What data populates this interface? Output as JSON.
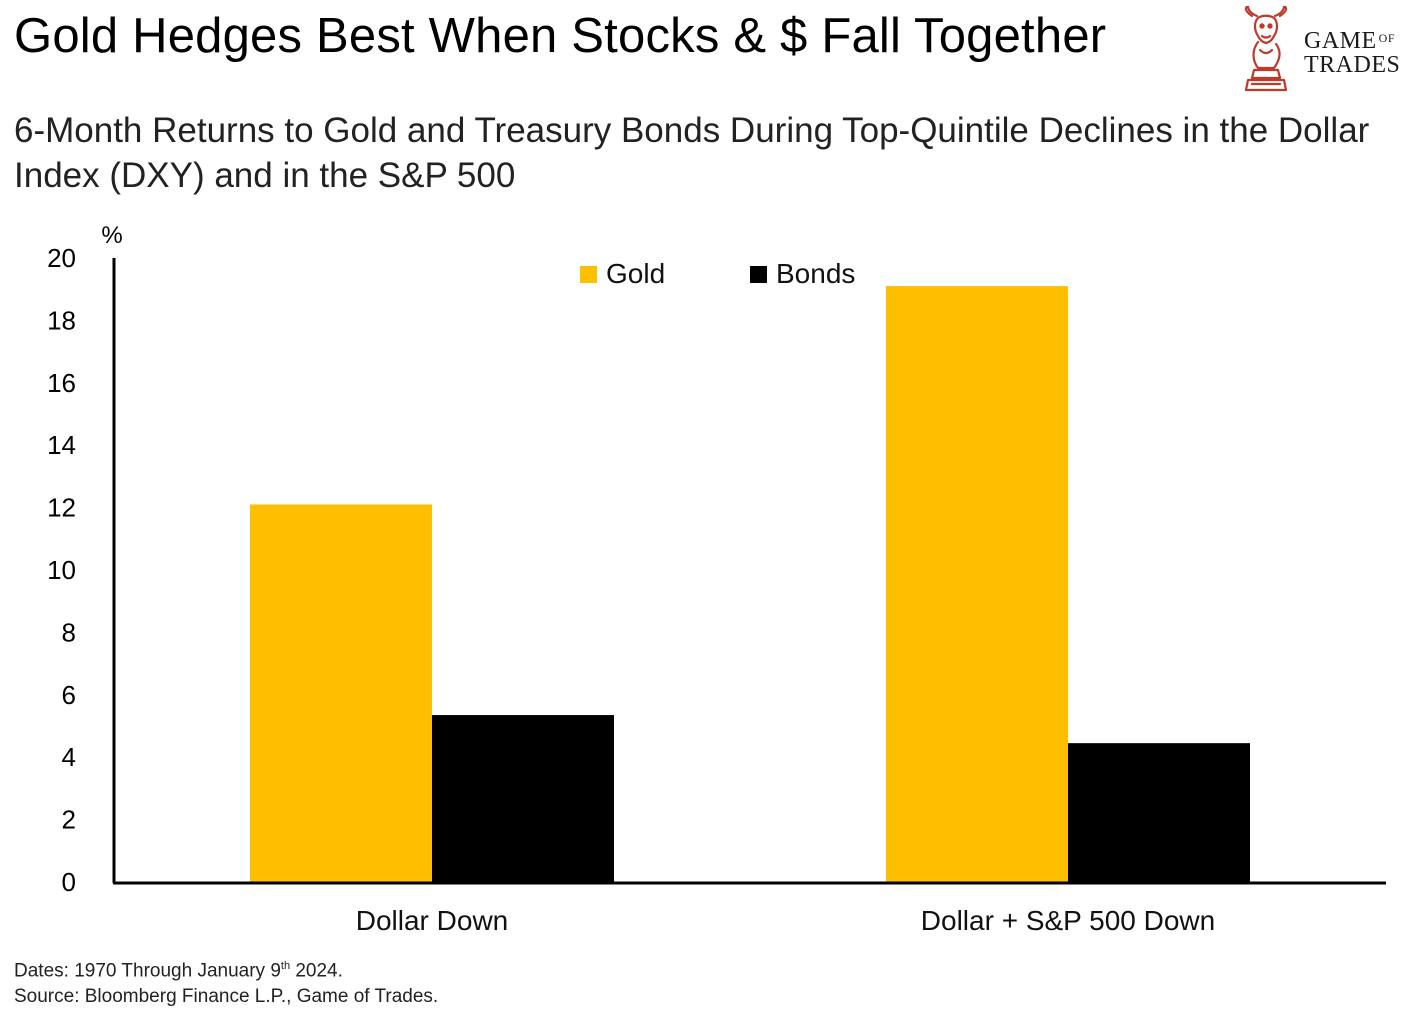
{
  "title": "Gold Hedges Best When Stocks & $ Fall Together",
  "subtitle": "6-Month Returns to Gold and Treasury Bonds During Top-Quintile Declines in the Dollar Index (DXY) and in the S&P 500",
  "logo": {
    "line1": "GAME",
    "line1_small": "OF",
    "line2": "TRADES",
    "icon": "bull-chess-knight-icon"
  },
  "footnote": {
    "dates_prefix": "Dates: 1970 Through January 9",
    "dates_sup": "th",
    "dates_suffix": " 2024.",
    "source": "Source: Bloomberg Finance L.P., Game of Trades."
  },
  "colors": {
    "gold": "#FDBF00",
    "bonds": "#000000",
    "axis": "#000000"
  },
  "chart_data": {
    "type": "bar",
    "ylabel": "%",
    "ylim": [
      0,
      20
    ],
    "yticks": [
      0,
      2,
      4,
      6,
      8,
      10,
      12,
      14,
      16,
      18,
      20
    ],
    "categories": [
      "Dollar Down",
      "Dollar + S&P 500 Down"
    ],
    "series": [
      {
        "name": "Gold",
        "color": "#FDBF00",
        "values": [
          12.1,
          19.1
        ]
      },
      {
        "name": "Bonds",
        "color": "#000000",
        "values": [
          5.35,
          4.45
        ]
      }
    ],
    "legend_position": "top-center",
    "grid": false
  }
}
